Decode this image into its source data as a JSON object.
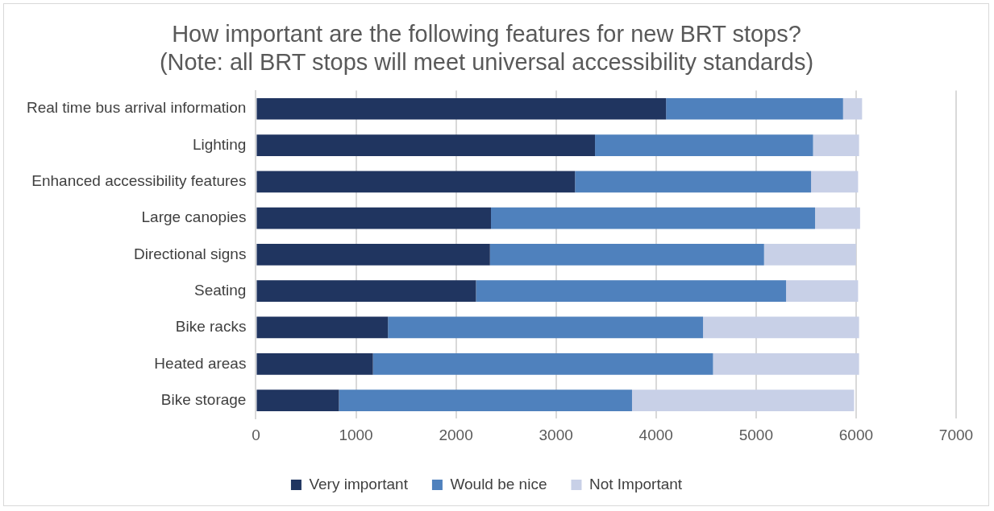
{
  "chart_data": {
    "type": "bar",
    "orientation": "horizontal",
    "stacked": true,
    "title": "How important are the following features for new BRT stops?\n(Note: all BRT stops will meet universal accessibility standards)",
    "categories": [
      "Real time bus arrival information",
      "Lighting",
      "Enhanced accessibility features",
      "Large canopies",
      "Directional signs",
      "Seating",
      "Bike racks",
      "Heated areas",
      "Bike storage"
    ],
    "series": [
      {
        "name": "Very important",
        "color": "#203560",
        "values": [
          4100,
          3390,
          3190,
          2350,
          2340,
          2200,
          1320,
          1170,
          830
        ]
      },
      {
        "name": "Would be nice",
        "color": "#4f81bd",
        "values": [
          1770,
          2180,
          2360,
          3240,
          2740,
          3100,
          3150,
          3400,
          2930
        ]
      },
      {
        "name": "Not Important",
        "color": "#c8d0e7",
        "values": [
          190,
          460,
          470,
          450,
          920,
          720,
          1560,
          1460,
          2220
        ]
      }
    ],
    "xlim": [
      0,
      7000
    ],
    "xticks": [
      0,
      1000,
      2000,
      3000,
      4000,
      5000,
      6000,
      7000
    ],
    "grid": "x",
    "legend": "bottom"
  }
}
